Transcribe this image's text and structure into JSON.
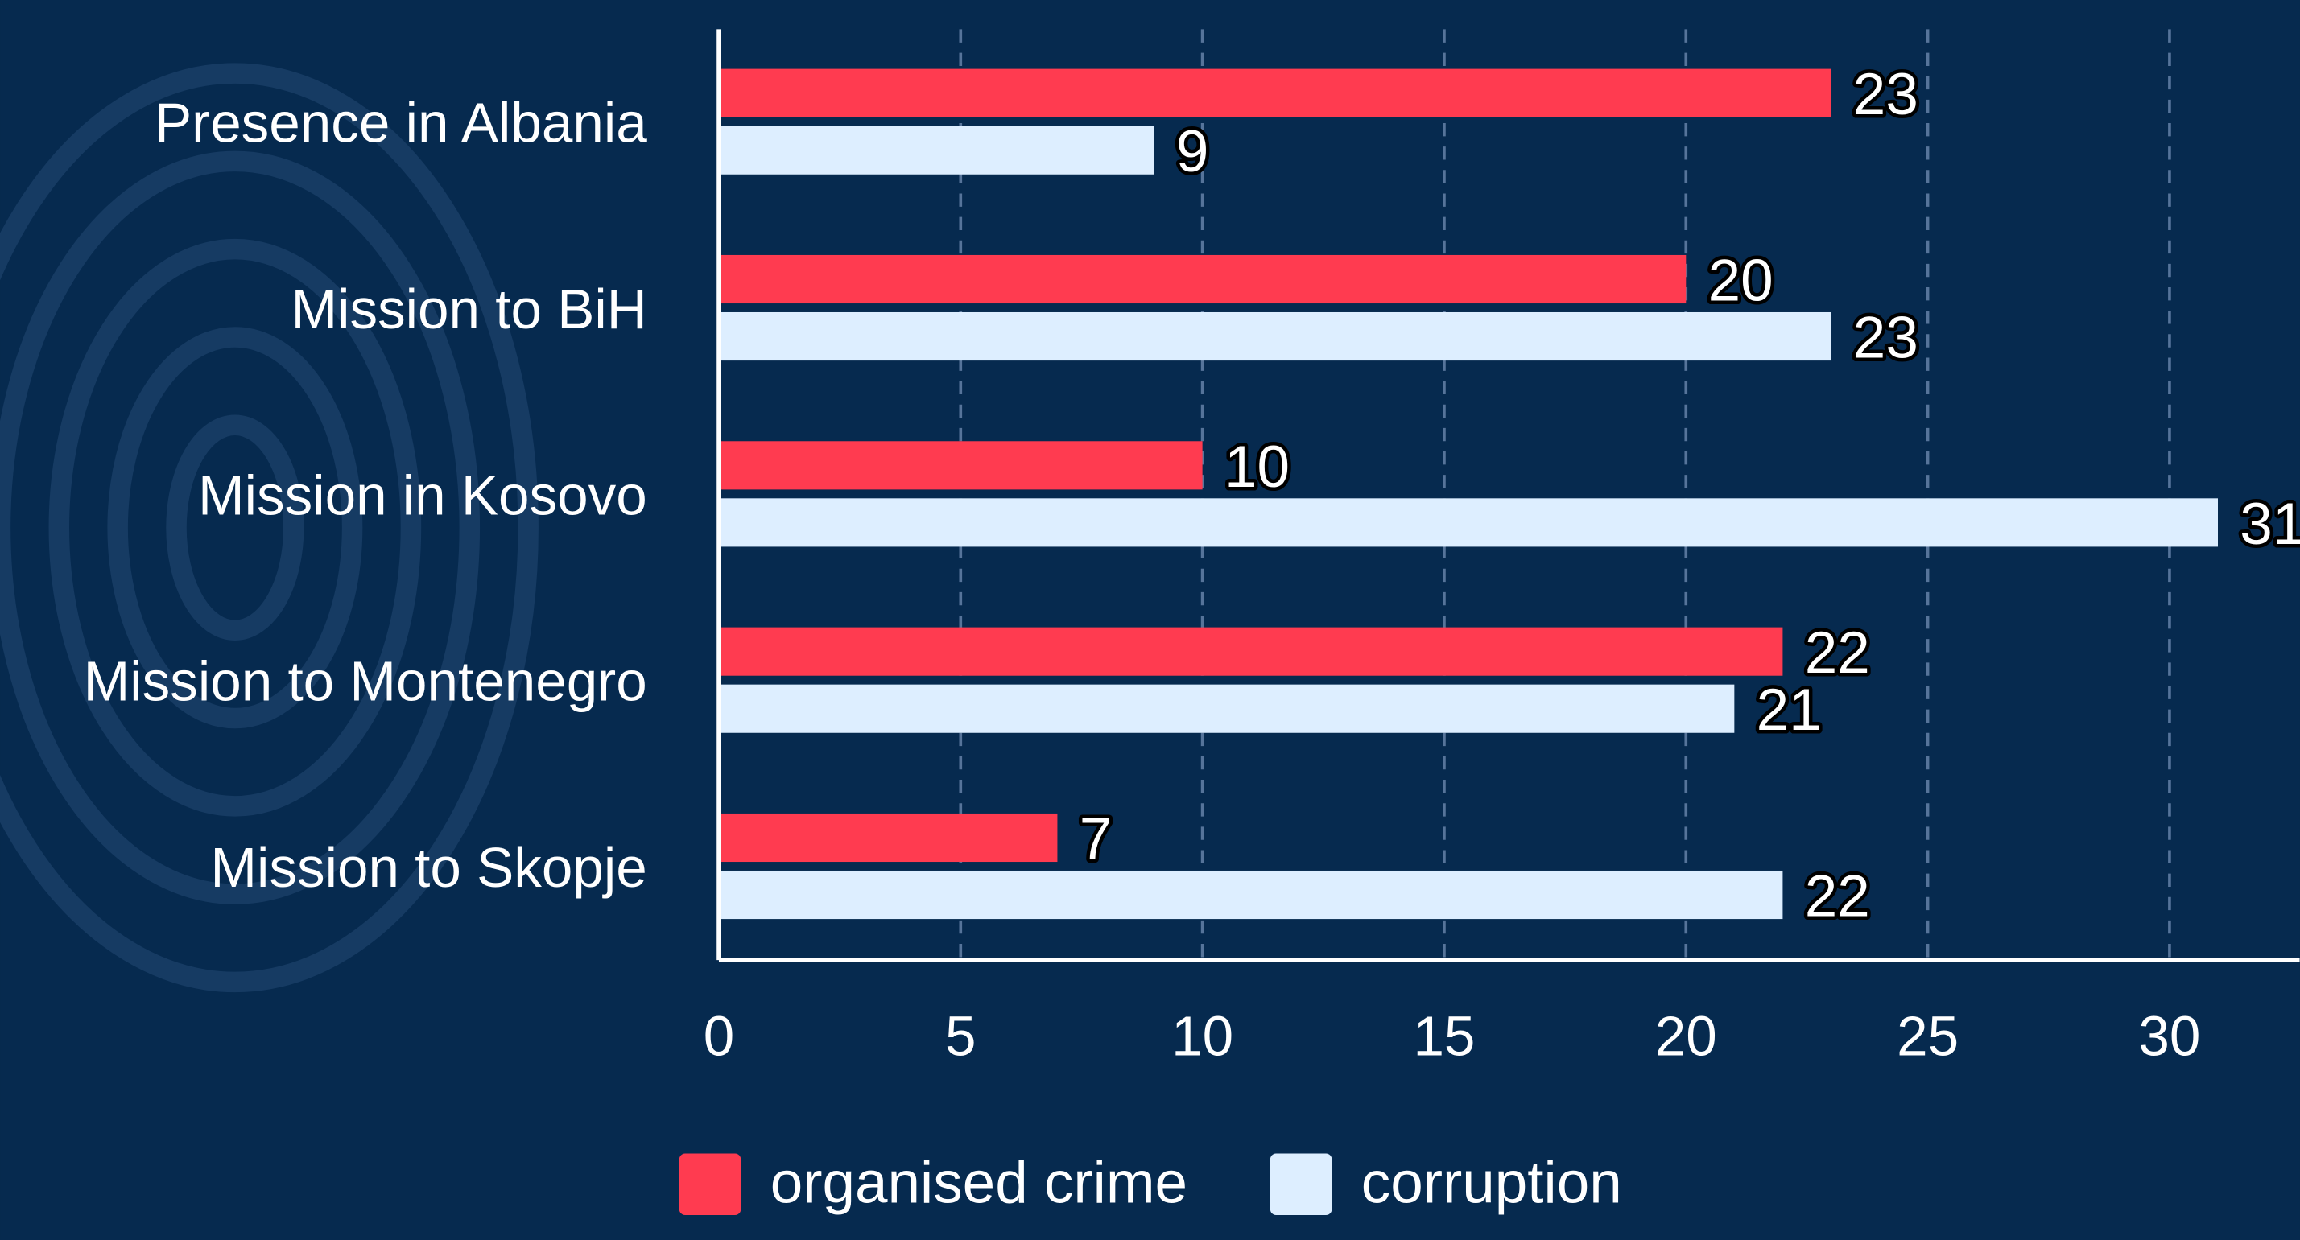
{
  "chart_data": {
    "type": "bar",
    "orientation": "horizontal",
    "categories": [
      "Presence in Albania",
      "Mission to BiH",
      "Mission in Kosovo",
      "Mission to Montenegro",
      "Mission to Skopje"
    ],
    "series": [
      {
        "name": "organised crime",
        "color": "#ff3b50",
        "values": [
          23,
          20,
          10,
          22,
          7
        ]
      },
      {
        "name": "corruption",
        "color": "#ddeeff",
        "values": [
          9,
          23,
          31,
          21,
          22
        ]
      }
    ],
    "xlim": [
      0,
      32.6
    ],
    "xticks": [
      0,
      5,
      10,
      15,
      20,
      25,
      30
    ],
    "grid": true,
    "legend": "bottom"
  }
}
